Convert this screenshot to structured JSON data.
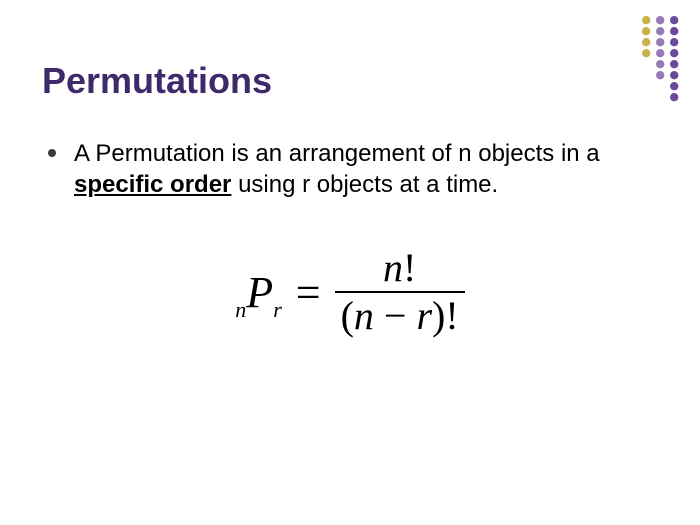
{
  "title": {
    "text": "Permutations",
    "color": "#3d2a6b"
  },
  "bullet": {
    "dot_color": "#3a3a3a",
    "pre": "A Permutation is an arrangement of n objects in a ",
    "emph": "specific order",
    "post": " using r objects at a time."
  },
  "formula": {
    "lhs_pre_sub": "n",
    "lhs_main": "P",
    "lhs_post_sub": "r",
    "equals": "=",
    "numerator_var": "n",
    "numerator_bang": "!",
    "denominator_open": "(",
    "denominator_a": "n",
    "denominator_op": " − ",
    "denominator_b": "r",
    "denominator_close": ")",
    "denominator_bang": "!"
  },
  "decoration": {
    "columns": [
      {
        "color": "#c9b24a",
        "count": 4
      },
      {
        "color": "#977bb6",
        "count": 6
      },
      {
        "color": "#6b4a9a",
        "count": 8
      }
    ],
    "dot_radius": 4.2,
    "col_spacing": 14,
    "row_spacing": 11
  }
}
